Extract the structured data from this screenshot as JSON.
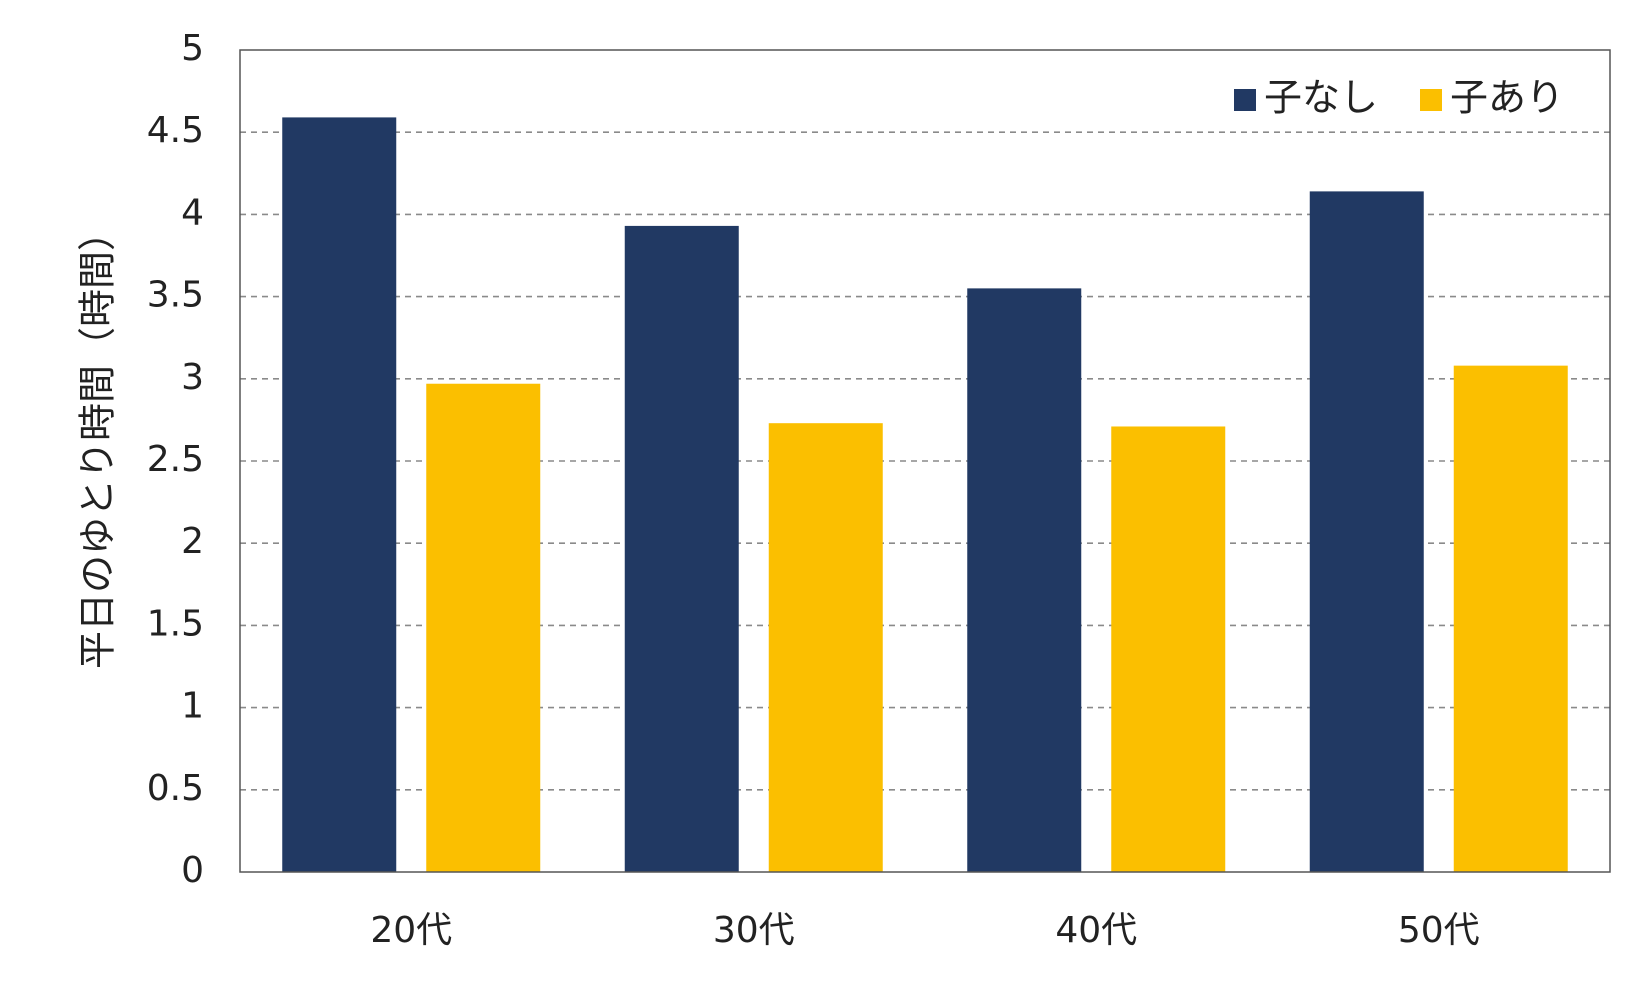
{
  "chart_data": {
    "type": "bar",
    "categories": [
      "20代",
      "30代",
      "40代",
      "50代"
    ],
    "series": [
      {
        "name": "子なし",
        "color": "#213963",
        "values": [
          4.59,
          3.93,
          3.55,
          4.14
        ]
      },
      {
        "name": "子あり",
        "color": "#FBBF00",
        "values": [
          2.97,
          2.73,
          2.71,
          3.08
        ]
      }
    ],
    "title": "",
    "xlabel": "",
    "ylabel": "平日のゆとり時間（時間）",
    "ylim": [
      0,
      5
    ],
    "yticks": [
      0,
      0.5,
      1,
      1.5,
      2,
      2.5,
      3,
      3.5,
      4,
      4.5,
      5
    ],
    "ytick_labels": [
      "0",
      "0.5",
      "1",
      "1.5",
      "2",
      "2.5",
      "3",
      "3.5",
      "4",
      "4.5",
      "5"
    ],
    "grid": "horizontal dashed",
    "legend_position": "top-right"
  }
}
